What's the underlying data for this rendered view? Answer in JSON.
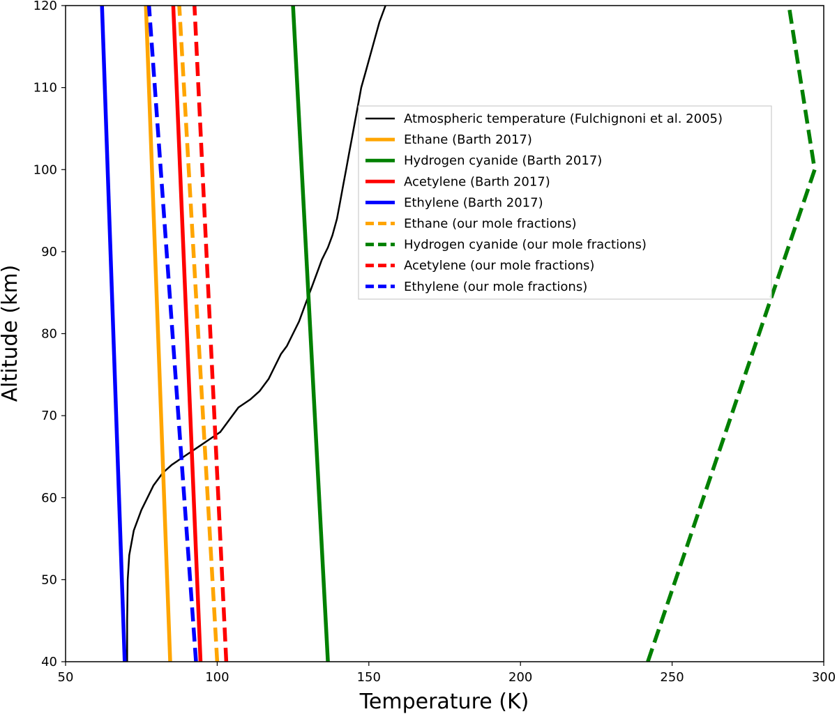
{
  "chart_data": {
    "type": "line",
    "title": "",
    "xlabel": "Temperature (K)",
    "ylabel": "Altitude (km)",
    "xlim": [
      50,
      300
    ],
    "ylim": [
      40,
      120
    ],
    "xticks": [
      50,
      100,
      150,
      200,
      250,
      300
    ],
    "yticks": [
      40,
      50,
      60,
      70,
      80,
      90,
      100,
      110,
      120
    ],
    "grid": false,
    "legend_position": "upper-center-right",
    "series": [
      {
        "name": "Atmospheric temperature (Fulchignoni et al. 2005)",
        "color": "#000000",
        "style": "solid",
        "width": "thin",
        "x": [
          70.3,
          70.3,
          70.5,
          71,
          72.5,
          75,
          77,
          79,
          82,
          85,
          89,
          93,
          97,
          101,
          104,
          107,
          111,
          114,
          117,
          119,
          121,
          123,
          125,
          127,
          128.5,
          130,
          131.5,
          133,
          134.5,
          136.5,
          138,
          139.5,
          140.5,
          141.5,
          142.5,
          143.5,
          144.5,
          145.5,
          146.5,
          147.5,
          149,
          150.5,
          152,
          153.5,
          155.5
        ],
        "y": [
          40,
          45,
          50,
          53,
          56,
          58.5,
          60,
          61.5,
          63,
          64,
          65,
          66,
          67,
          68,
          69.5,
          71,
          72,
          73,
          74.5,
          76,
          77.5,
          78.5,
          80,
          81.5,
          83,
          84.5,
          86,
          87.5,
          89,
          90.5,
          92,
          94,
          96,
          98,
          100,
          102,
          104,
          106,
          108,
          110,
          112,
          114,
          116,
          118,
          120
        ]
      },
      {
        "name": "Ethane (Barth 2017)",
        "color": "#FFA500",
        "style": "solid",
        "width": "thick",
        "x": [
          84.5,
          76.5
        ],
        "y": [
          40,
          120
        ]
      },
      {
        "name": "Hydrogen cyanide (Barth 2017)",
        "color": "#008000",
        "style": "solid",
        "width": "thick",
        "x": [
          136.5,
          125
        ],
        "y": [
          40,
          120
        ]
      },
      {
        "name": "Acetylene (Barth 2017)",
        "color": "#FF0000",
        "style": "solid",
        "width": "thick",
        "x": [
          94.5,
          85.5
        ],
        "y": [
          40,
          120
        ]
      },
      {
        "name": "Ethylene (Barth 2017)",
        "color": "#0000FF",
        "style": "solid",
        "width": "thick",
        "x": [
          69.5,
          62
        ],
        "y": [
          40,
          120
        ]
      },
      {
        "name": "Ethane (our mole fractions)",
        "color": "#FFA500",
        "style": "dashed",
        "width": "thick",
        "x": [
          100,
          87.5
        ],
        "y": [
          40,
          120
        ]
      },
      {
        "name": "Hydrogen cyanide (our mole fractions)",
        "color": "#008000",
        "style": "dashed",
        "width": "thick",
        "x": [
          242,
          297,
          288.5
        ],
        "y": [
          40,
          100,
          120
        ]
      },
      {
        "name": "Acetylene (our mole fractions)",
        "color": "#FF0000",
        "style": "dashed",
        "width": "thick",
        "x": [
          103,
          92.5
        ],
        "y": [
          40,
          120
        ]
      },
      {
        "name": "Ethylene (our mole fractions)",
        "color": "#0000FF",
        "style": "dashed",
        "width": "thick",
        "x": [
          93,
          77.5
        ],
        "y": [
          40,
          120
        ]
      }
    ]
  }
}
